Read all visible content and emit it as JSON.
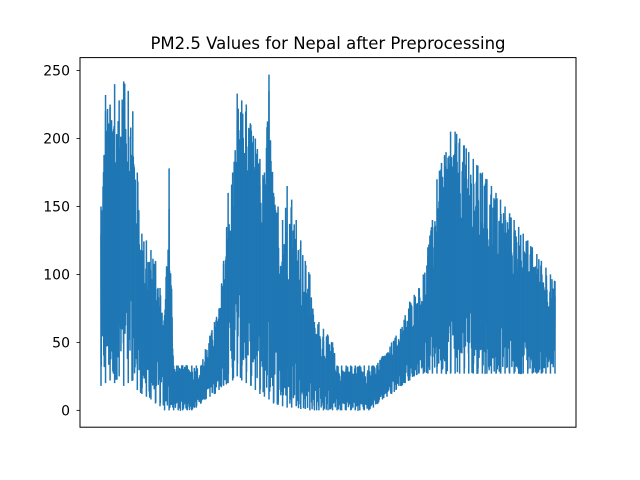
{
  "chart_data": {
    "type": "line",
    "title": "PM2.5 Values for Nepal after Preprocessing",
    "xlabel": "",
    "ylabel": "",
    "x_ticks_visible": false,
    "grid": false,
    "legend": "none",
    "ylim": [
      -12.4,
      259.5
    ],
    "yticks": [
      0,
      50,
      100,
      150,
      200,
      250
    ],
    "ytick_labels": [
      "0",
      "50",
      "100",
      "150",
      "200",
      "250"
    ],
    "series": [
      {
        "color": "#1f77b4",
        "note_envelope": "upper and lower envelope of dense time series",
        "x": [
          0,
          1,
          2,
          3,
          4,
          5,
          6,
          7,
          8,
          9,
          10,
          11,
          12,
          13,
          14,
          15,
          16,
          17,
          18,
          19,
          20,
          21,
          22,
          23,
          24,
          25,
          26,
          27,
          28,
          29,
          30,
          31,
          32,
          33,
          34,
          35,
          36,
          37,
          38,
          39,
          40,
          41,
          42,
          43,
          44,
          45,
          46,
          47,
          48,
          49,
          50,
          51,
          52,
          53,
          54,
          55,
          56,
          57,
          58,
          59,
          60,
          61,
          62,
          63,
          64,
          65,
          66,
          67,
          68,
          69,
          70,
          71,
          72,
          73,
          74,
          75,
          76,
          77,
          78,
          79,
          80,
          81,
          82,
          83,
          84,
          85,
          86,
          87,
          88,
          89,
          90,
          91,
          92,
          93,
          94,
          95,
          96,
          97,
          98,
          99,
          100
        ],
        "upper": [
          150,
          232,
          225,
          240,
          228,
          242,
          235,
          220,
          175,
          130,
          125,
          118,
          110,
          90,
          70,
          178,
          33,
          33,
          33,
          33,
          33,
          33,
          33,
          45,
          55,
          65,
          75,
          110,
          160,
          175,
          233,
          228,
          225,
          210,
          200,
          185,
          175,
          247,
          160,
          150,
          140,
          165,
          155,
          140,
          125,
          110,
          100,
          65,
          65,
          60,
          55,
          50,
          33,
          33,
          33,
          33,
          33,
          33,
          33,
          33,
          33,
          35,
          40,
          42,
          50,
          55,
          60,
          70,
          80,
          85,
          90,
          100,
          120,
          140,
          170,
          182,
          190,
          205,
          205,
          200,
          195,
          190,
          185,
          180,
          175,
          170,
          165,
          160,
          155,
          150,
          145,
          140,
          135,
          130,
          125,
          120,
          115,
          110,
          105,
          100,
          95
        ],
        "lower": [
          18,
          20,
          22,
          20,
          25,
          18,
          20,
          22,
          15,
          12,
          10,
          8,
          5,
          3,
          0,
          0,
          0,
          0,
          0,
          0,
          0,
          2,
          5,
          8,
          10,
          12,
          15,
          18,
          20,
          22,
          25,
          22,
          20,
          18,
          15,
          12,
          10,
          8,
          5,
          4,
          3,
          2,
          2,
          3,
          1,
          1,
          0,
          0,
          0,
          0,
          0,
          0,
          0,
          0,
          0,
          0,
          0,
          0,
          0,
          0,
          2,
          5,
          8,
          10,
          12,
          15,
          18,
          20,
          22,
          25,
          27,
          27,
          27,
          27,
          27,
          27,
          27,
          27,
          27,
          27,
          27,
          27,
          27,
          27,
          27,
          27,
          27,
          27,
          27,
          27,
          27,
          27,
          27,
          27,
          27,
          27,
          27,
          27,
          27,
          27,
          27
        ]
      }
    ]
  }
}
